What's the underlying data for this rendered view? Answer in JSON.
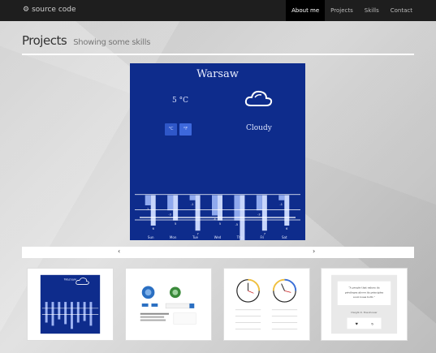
{
  "brand": {
    "label": "source code",
    "icon": "gear-icon"
  },
  "nav": [
    {
      "label": "About me",
      "active": true
    },
    {
      "label": "Projects",
      "active": false
    },
    {
      "label": "Skills",
      "active": false
    },
    {
      "label": "Contact",
      "active": false
    }
  ],
  "header": {
    "title": "Projects",
    "subtitle": "Showing some skills"
  },
  "weather": {
    "city": "Warsaw",
    "temperature": "5 °C",
    "condition": "Cloudy",
    "unit_c": "°C",
    "unit_f": "°F",
    "icon": "cloud-icon"
  },
  "chart_data": {
    "type": "bar",
    "categories": [
      "Sun",
      "Mon",
      "Tue",
      "Wed",
      "Thu",
      "Fri",
      "Sat"
    ],
    "series": [
      {
        "values": [
          -2,
          -3,
          -1,
          -4,
          -5,
          -3,
          -1
        ]
      },
      {
        "values": [
          6,
          5,
          7,
          5,
          9,
          7,
          6
        ]
      }
    ],
    "ylim": [
      -6,
      10
    ]
  },
  "carousel": {
    "prev": "‹",
    "next": "›"
  },
  "thumbnails": [
    {
      "name": "weather-app-thumb",
      "title": "Warsaw"
    },
    {
      "name": "dashboard-thumb"
    },
    {
      "name": "clocks-thumb"
    },
    {
      "name": "quote-thumb",
      "quote": "“A people that values its privileges above its principles soon loses both.”",
      "author": "Dwight D. Eisenhower"
    }
  ]
}
